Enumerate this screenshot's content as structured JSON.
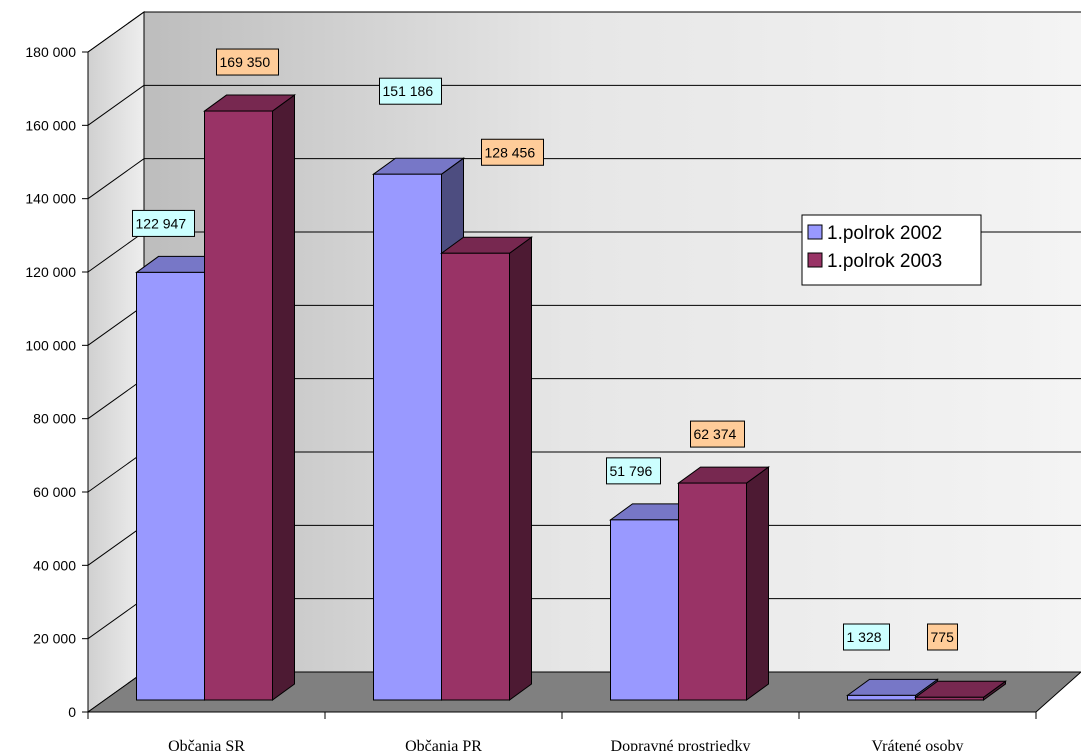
{
  "chart_data": {
    "type": "bar",
    "categories": [
      "Občania  SR",
      "Občania PR",
      "Dopravné prostriedky",
      "Vrátené osoby"
    ],
    "series": [
      {
        "name": "1.polrok 2002",
        "values": [
          122947,
          151186,
          51796,
          1328
        ],
        "labels": [
          "122 947",
          "151 186",
          "51 796",
          "1 328"
        ],
        "color": "#9999ff",
        "label_bg": "#ccffff"
      },
      {
        "name": "1.polrok 2003",
        "values": [
          169350,
          128456,
          62374,
          775
        ],
        "labels": [
          "169 350",
          "128 456",
          "62 374",
          "775"
        ],
        "color": "#993366",
        "label_bg": "#ffcc99"
      }
    ],
    "y_ticks": [
      0,
      20000,
      40000,
      60000,
      80000,
      100000,
      120000,
      140000,
      160000,
      180000
    ],
    "y_tick_labels": [
      "0",
      "20 000",
      "40 000",
      "60 000",
      "80 000",
      "100 000",
      "120 000",
      "140 000",
      "160 000",
      "180 000"
    ],
    "ylim": [
      0,
      180000
    ],
    "grid": true,
    "three_d": true,
    "legend_position": "right",
    "title": "",
    "xlabel": "",
    "ylabel": ""
  }
}
